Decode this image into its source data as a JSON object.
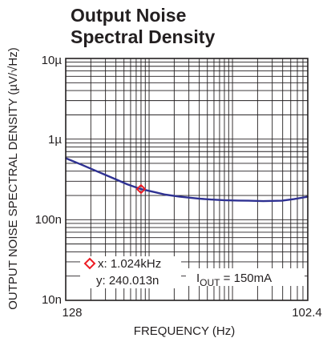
{
  "chart_data": {
    "type": "line",
    "title": [
      "Output Noise",
      "Spectral Density"
    ],
    "xlabel": "FREQUENCY (Hz)",
    "ylabel": "OUTPUT NOISE SPECTRAL DENSITY (µV/√Hz)",
    "xscale": "log",
    "yscale": "log",
    "xlim": [
      128,
      102400
    ],
    "ylim": [
      1e-08,
      1e-05
    ],
    "x_tick_labels": [
      "128",
      "102.4"
    ],
    "y_tick_labels": [
      "10µ",
      "1µ",
      "100n",
      "10n"
    ],
    "grid": true,
    "series": [
      {
        "color": "#2e3192",
        "x": [
          128,
          200,
          300,
          500,
          700,
          1024,
          1500,
          2000,
          3000,
          5000,
          7000,
          10000,
          15000,
          20000,
          30000,
          50000,
          70000,
          102400
        ],
        "y": [
          5.8e-07,
          4.8e-07,
          4e-07,
          3.2e-07,
          2.75e-07,
          2.4e-07,
          2.2e-07,
          2.05e-07,
          1.93e-07,
          1.83e-07,
          1.78e-07,
          1.75e-07,
          1.73e-07,
          1.72e-07,
          1.7e-07,
          1.72e-07,
          1.8e-07,
          1.93e-07
        ]
      }
    ],
    "cursor": {
      "x": 1024,
      "y": 2.4e-07,
      "color": "#ed1c24"
    },
    "cursor_label": [
      "x: 1.024kHz",
      "y: 240.013n"
    ],
    "condition_label": {
      "main": "I",
      "sub": "OUT",
      "rest": " = 150mA"
    }
  }
}
